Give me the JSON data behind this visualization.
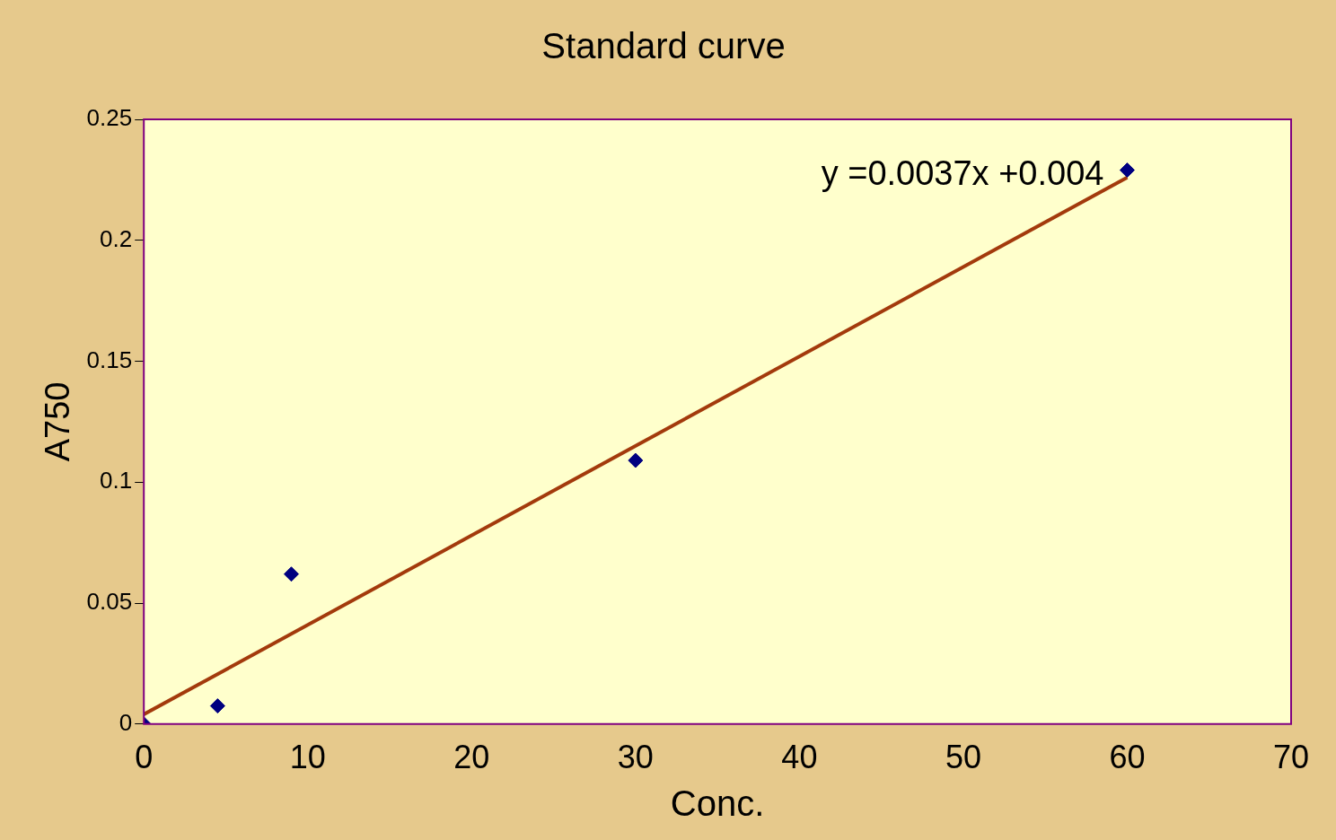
{
  "chart_data": {
    "type": "scatter",
    "title": "Standard curve",
    "xlabel": "Conc.",
    "ylabel": "A750",
    "xlim": [
      0,
      70
    ],
    "xticks": [
      0,
      10,
      20,
      30,
      40,
      50,
      60,
      70
    ],
    "ylim": [
      0,
      0.25
    ],
    "yticks": [
      0,
      0.05,
      0.1,
      0.15,
      0.2,
      0.25
    ],
    "grid": false,
    "legend": false,
    "marker": "diamond",
    "series": [
      {
        "color": "#000080",
        "x": [
          0,
          4.5,
          9,
          30,
          60
        ],
        "values": [
          0,
          0.0075,
          0.062,
          0.109,
          0.229
        ]
      },
      {
        "type": "line",
        "color": "#a33a0c",
        "x": [
          0,
          60
        ],
        "values": [
          0.004,
          0.226
        ],
        "line_style": "solid",
        "marker": "none"
      }
    ],
    "annotations": [
      {
        "text": "y =0.0037x +0.004",
        "x": 60,
        "y": 0.229
      }
    ]
  }
}
